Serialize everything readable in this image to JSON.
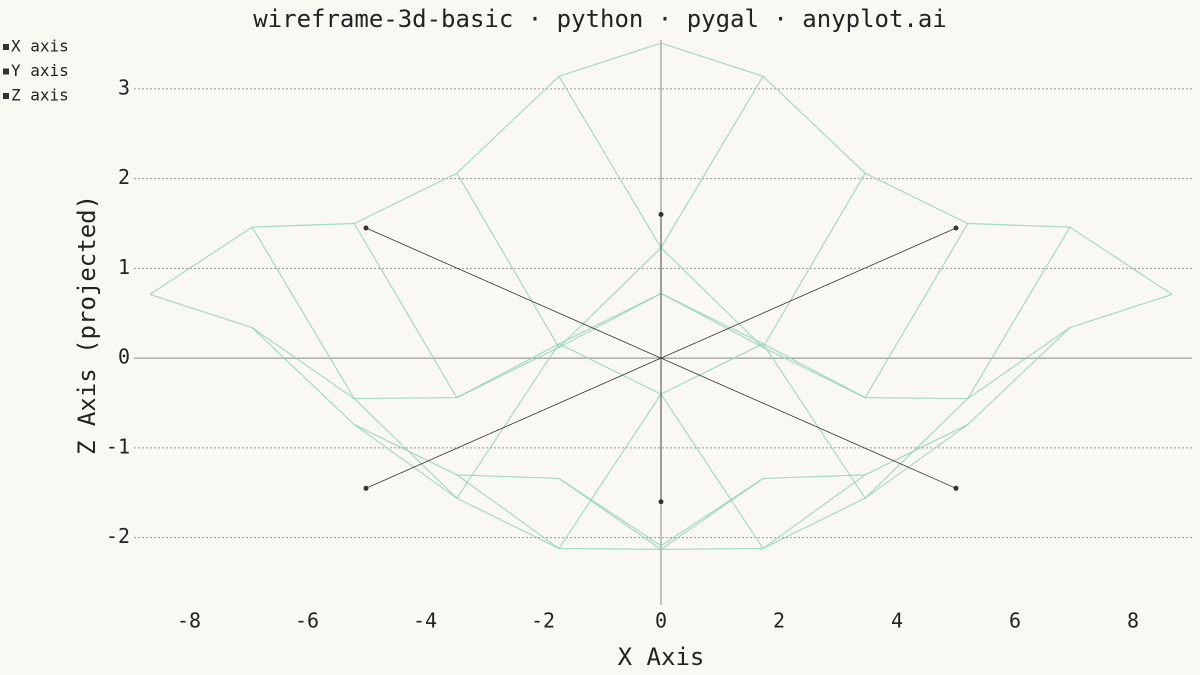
{
  "chart_data": {
    "type": "wireframe",
    "title": "wireframe-3d-basic · python · pygal · anyplot.ai",
    "x_label": "X Axis",
    "y_label": "Z Axis (projected)",
    "xlim": [
      -9,
      9
    ],
    "ylim": [
      -2.75,
      3.6
    ],
    "xticks": [
      -8,
      -6,
      -4,
      -2,
      0,
      2,
      4,
      6,
      8
    ],
    "yticks": [
      -2,
      -1,
      0,
      1,
      2,
      3
    ],
    "grid": true,
    "legend": "top-left",
    "wireframe_color": "#8fd3b8",
    "wireframe": {
      "x": [
        [
          0,
          -1.73,
          -3.46,
          -5.2,
          -6.93,
          -8.66
        ],
        [
          1.73,
          0,
          -1.73,
          -3.46,
          -5.2,
          -6.93
        ],
        [
          3.46,
          1.73,
          0,
          -1.73,
          -3.46,
          -5.2
        ],
        [
          5.2,
          3.46,
          1.73,
          0,
          -1.73,
          -3.46
        ],
        [
          6.93,
          5.2,
          3.46,
          1.73,
          0,
          -1.73
        ],
        [
          8.66,
          6.93,
          5.2,
          3.46,
          1.73,
          0
        ]
      ],
      "y": [
        [
          -2.09,
          -1.34,
          -1.3,
          -0.74,
          0.34,
          0.71
        ],
        [
          -1.34,
          -2.13,
          -2.12,
          -1.56,
          -0.45,
          1.46
        ],
        [
          -1.3,
          -2.12,
          -0.4,
          0.16,
          -0.44,
          1.5
        ],
        [
          -0.74,
          -1.56,
          0.16,
          0.72,
          0.12,
          2.06
        ],
        [
          0.34,
          -0.45,
          -0.44,
          0.12,
          1.23,
          3.14
        ],
        [
          0.71,
          1.46,
          1.5,
          2.06,
          3.14,
          3.51
        ]
      ]
    },
    "series": [
      {
        "name": "X axis",
        "color": "#333333",
        "x": [
          -5,
          5
        ],
        "values": [
          -1.45,
          1.45
        ]
      },
      {
        "name": "Y axis",
        "color": "#333333",
        "x": [
          -5,
          5
        ],
        "values": [
          1.45,
          -1.45
        ]
      },
      {
        "name": "Z axis",
        "color": "#333333",
        "x": [
          0,
          0
        ],
        "values": [
          -1.6,
          1.6
        ]
      }
    ]
  }
}
